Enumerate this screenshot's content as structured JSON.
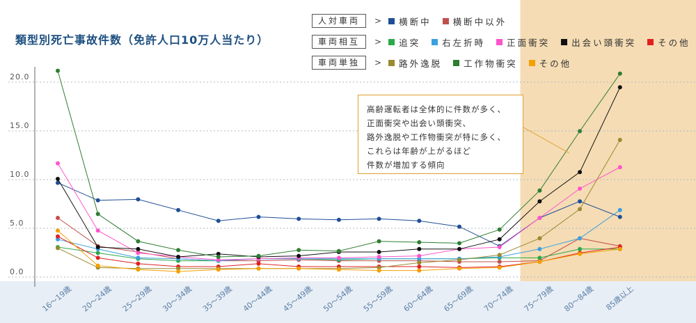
{
  "title": "類型別死亡事故件数（免許人口10万人当たり）",
  "legend": [
    {
      "group": "人対車両",
      "items": [
        {
          "label": "横断中",
          "color": "#1f4e96"
        },
        {
          "label": "横断中以外",
          "color": "#c0504d"
        }
      ]
    },
    {
      "group": "車両相互",
      "items": [
        {
          "label": "追突",
          "color": "#2aa84a"
        },
        {
          "label": "右左折時",
          "color": "#3aa0e0"
        },
        {
          "label": "正面衝突",
          "color": "#ff55cc"
        },
        {
          "label": "出会い頭衝突",
          "color": "#111111"
        },
        {
          "label": "その他",
          "color": "#e02020"
        }
      ]
    },
    {
      "group": "車両単独",
      "items": [
        {
          "label": "路外逸脱",
          "color": "#9a8a30"
        },
        {
          "label": "工作物衝突",
          "color": "#2e7d32"
        },
        {
          "label": "その他",
          "color": "#f5a000"
        }
      ]
    }
  ],
  "annotation": [
    "高齢運転者は全体的に件数が多く、",
    "正面衝突や出会い頭衝突、",
    "路外逸脱や工作物衝突が特に多く、",
    "これらは年齢が上がるほど",
    "件数が増加する傾向"
  ],
  "colors": {
    "highlight_band": "#f5dcb4",
    "plot_bg": "#ffffff",
    "axis_area": "#e8eef5",
    "tick_label": "#5a7fa8"
  },
  "chart_data": {
    "type": "line",
    "title": "類型別死亡事故件数（免許人口10万人当たり）",
    "categories": [
      "16～19歳",
      "20～24歳",
      "25～29歳",
      "30～34歳",
      "35～39歳",
      "40～44歳",
      "45～49歳",
      "50～54歳",
      "55～59歳",
      "60～64歳",
      "65～69歳",
      "70～74歳",
      "75～79歳",
      "80～84歳",
      "85歳以上"
    ],
    "ylim": [
      0,
      22
    ],
    "yticks": [
      "0.0",
      "5.0",
      "10.0",
      "15.0",
      "20.0"
    ],
    "ytick_values": [
      0,
      5,
      10,
      15,
      20
    ],
    "highlight_categories": [
      "75～79歳",
      "80～84歳",
      "85歳以上"
    ],
    "grid": true,
    "legend_position": "top-right",
    "series": [
      {
        "name": "横断中",
        "color": "#1f4e96",
        "values": [
          9.1,
          7.3,
          7.4,
          6.3,
          5.2,
          5.6,
          5.4,
          5.3,
          5.4,
          5.2,
          4.6,
          2.6,
          5.5,
          7.2,
          5.6
        ]
      },
      {
        "name": "横断中以外",
        "color": "#c0504d",
        "values": [
          5.5,
          2.6,
          2.0,
          1.3,
          1.1,
          1.1,
          1.2,
          1.1,
          1.1,
          1.1,
          1.0,
          1.0,
          1.1,
          3.4,
          2.6
        ]
      },
      {
        "name": "追突",
        "color": "#2aa84a",
        "values": [
          2.5,
          1.9,
          1.3,
          1.1,
          1.1,
          1.3,
          1.3,
          1.2,
          1.3,
          1.3,
          1.3,
          1.4,
          1.4,
          2.3,
          2.3
        ]
      },
      {
        "name": "右左折時",
        "color": "#3aa0e0",
        "values": [
          3.3,
          2.3,
          1.4,
          1.3,
          1.1,
          1.3,
          1.3,
          1.3,
          1.3,
          1.3,
          1.3,
          1.5,
          2.3,
          3.4,
          6.3
        ]
      },
      {
        "name": "正面衝突",
        "color": "#ff55cc",
        "values": [
          11.1,
          4.2,
          1.9,
          1.5,
          1.2,
          1.3,
          1.4,
          1.4,
          1.5,
          1.6,
          2.3,
          2.5,
          5.5,
          8.5,
          10.7
        ]
      },
      {
        "name": "出会い頭衝突",
        "color": "#111111",
        "values": [
          9.5,
          2.5,
          2.3,
          1.5,
          1.8,
          1.5,
          1.6,
          2.0,
          2.0,
          2.3,
          2.3,
          3.3,
          7.2,
          10.2,
          18.9
        ]
      },
      {
        "name": "その他",
        "color": "#e02020",
        "values": [
          3.6,
          1.4,
          0.8,
          0.5,
          0.5,
          0.8,
          0.5,
          0.5,
          0.5,
          0.5,
          0.4,
          0.5,
          1.0,
          1.9,
          2.5
        ]
      },
      {
        "name": "路外逸脱",
        "color": "#9a8a30",
        "values": [
          2.4,
          0.4,
          0.3,
          0.3,
          0.3,
          0.3,
          0.3,
          0.3,
          0.4,
          0.9,
          1.2,
          1.7,
          3.4,
          6.4,
          13.5
        ]
      },
      {
        "name": "工作物衝突",
        "color": "#2e7d32",
        "values": [
          20.6,
          5.9,
          3.1,
          2.2,
          1.5,
          1.6,
          2.2,
          2.1,
          3.1,
          3.0,
          2.9,
          4.3,
          8.3,
          14.4,
          20.3
        ]
      },
      {
        "name": "その他",
        "color": "#f5a000",
        "values": [
          4.2,
          0.6,
          0.2,
          0.0,
          0.2,
          0.3,
          0.3,
          0.2,
          0.1,
          0.1,
          0.3,
          0.4,
          1.0,
          1.8,
          2.3
        ]
      }
    ]
  }
}
